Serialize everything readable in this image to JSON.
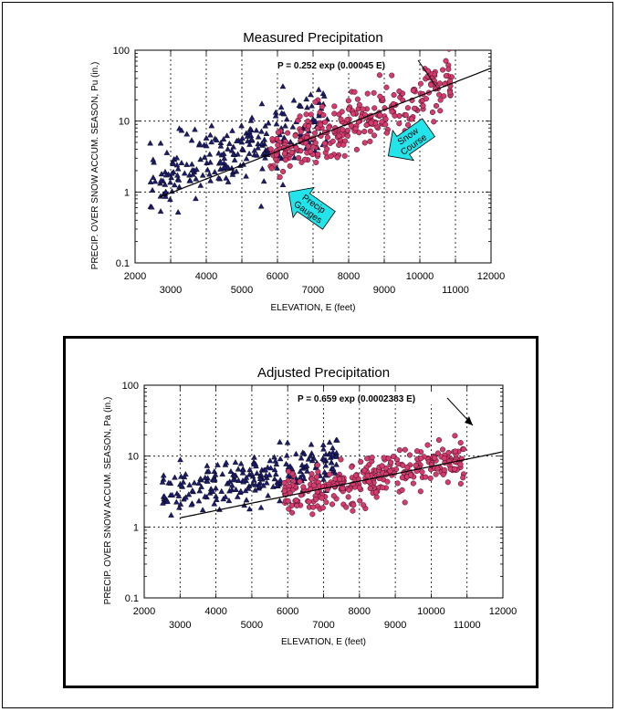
{
  "colors": {
    "gauge": "#1c1c6e",
    "snow": "#d43c6e",
    "arrow": "#22e4ea"
  },
  "chart_data": [
    {
      "type": "scatter",
      "title": "Measured Precipitation",
      "xlabel": "ELEVATION, E (feet)",
      "ylabel": "PRECIP. OVER SNOW ACCUM. SEASON, Pu (in.)",
      "xlim": [
        2000,
        12000
      ],
      "ylim": [
        0.1,
        100
      ],
      "ylog": true,
      "x_ticks_upper": [
        "2000",
        "4000",
        "6000",
        "8000",
        "10000",
        "12000"
      ],
      "x_ticks_lower": [
        "3000",
        "5000",
        "7000",
        "9000",
        "11000"
      ],
      "y_ticks": [
        "100",
        "10",
        "1",
        "0.1"
      ],
      "grid": true,
      "fit": {
        "label": "P = 0.252 exp (0.00045 E)",
        "a": 0.252,
        "b": 0.00045,
        "x_range": [
          2700,
          12000
        ]
      },
      "annotations": [
        {
          "text_lines": [
            "Snow",
            "Course"
          ],
          "x": 9700,
          "y": 5.2
        },
        {
          "text_lines": [
            "Precip",
            "Gauges"
          ],
          "x": 6900,
          "y": 0.62
        }
      ],
      "series": [
        {
          "name": "Precip Gauges",
          "marker": "triangle",
          "count": 240,
          "x_range": [
            2400,
            7400
          ],
          "a": 0.45,
          "b": 0.00043,
          "spread": 0.55,
          "seed": 11
        },
        {
          "name": "Snow Course",
          "marker": "circle",
          "count": 300,
          "x_range": [
            5800,
            10900
          ],
          "a": 0.252,
          "b": 0.00045,
          "spread": 0.45,
          "seed": 29
        }
      ]
    },
    {
      "type": "scatter",
      "title": "Adjusted Precipitation",
      "xlabel": "ELEVATION, E (feet)",
      "ylabel": "PRECIP. OVER SNOW ACCUM. SEASON, Pa (in.)",
      "xlim": [
        2000,
        12000
      ],
      "ylim": [
        0.1,
        100
      ],
      "ylog": true,
      "x_ticks_upper": [
        "2000",
        "4000",
        "6000",
        "8000",
        "10000",
        "12000"
      ],
      "x_ticks_lower": [
        "3000",
        "5000",
        "7000",
        "9000",
        "11000"
      ],
      "y_ticks": [
        "100",
        "10",
        "1",
        "0.1"
      ],
      "grid": true,
      "fit": {
        "label": "P = 0.659 exp (0.0002383 E)",
        "a": 0.659,
        "b": 0.0002383,
        "x_range": [
          3000,
          12000
        ]
      },
      "annotations": [],
      "series": [
        {
          "name": "Precip Gauges",
          "marker": "triangle",
          "count": 240,
          "x_range": [
            2500,
            7400
          ],
          "a": 1.5,
          "b": 0.00024,
          "spread": 0.38,
          "seed": 37
        },
        {
          "name": "Snow Course",
          "marker": "circle",
          "count": 300,
          "x_range": [
            5900,
            11000
          ],
          "a": 0.659,
          "b": 0.0002383,
          "spread": 0.35,
          "seed": 53
        }
      ]
    }
  ]
}
